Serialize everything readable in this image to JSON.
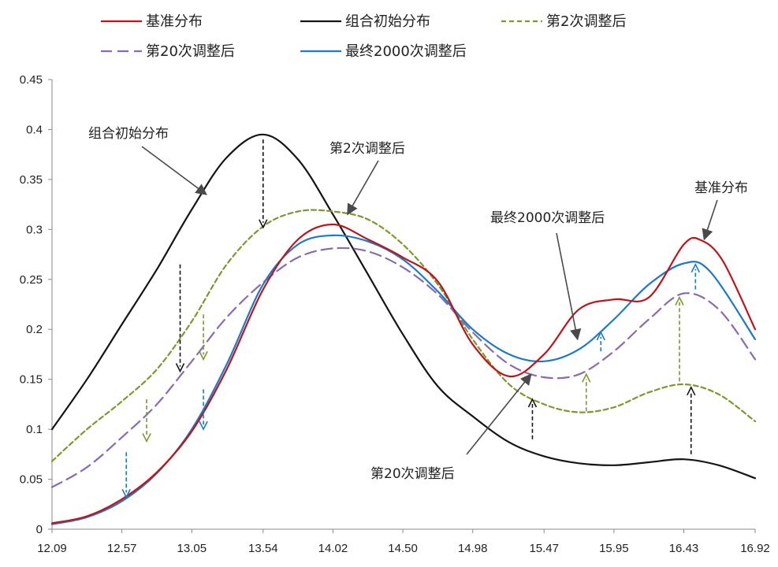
{
  "chart_data": {
    "type": "line",
    "x_ticks": [
      "12.09",
      "12.57",
      "13.05",
      "13.54",
      "14.02",
      "14.50",
      "14.98",
      "15.47",
      "15.95",
      "16.43",
      "16.92"
    ],
    "y_ticks": [
      "0",
      "0.05",
      "0.1",
      "0.15",
      "0.2",
      "0.25",
      "0.3",
      "0.35",
      "0.4",
      "0.45"
    ],
    "xlim": [
      12.09,
      16.92
    ],
    "ylim": [
      0,
      0.45
    ],
    "grid": false,
    "legend_position": "top",
    "series": [
      {
        "name": "基准分布",
        "color": "#c0141c",
        "dash": "solid",
        "points": [
          [
            12.09,
            0.006
          ],
          [
            12.33,
            0.013
          ],
          [
            12.57,
            0.03
          ],
          [
            12.81,
            0.057
          ],
          [
            13.05,
            0.098
          ],
          [
            13.29,
            0.16
          ],
          [
            13.54,
            0.24
          ],
          [
            13.78,
            0.29
          ],
          [
            14.02,
            0.305
          ],
          [
            14.26,
            0.29
          ],
          [
            14.5,
            0.272
          ],
          [
            14.74,
            0.248
          ],
          [
            14.98,
            0.185
          ],
          [
            15.23,
            0.153
          ],
          [
            15.47,
            0.175
          ],
          [
            15.71,
            0.22
          ],
          [
            15.95,
            0.23
          ],
          [
            16.19,
            0.232
          ],
          [
            16.43,
            0.285
          ],
          [
            16.55,
            0.289
          ],
          [
            16.7,
            0.268
          ],
          [
            16.92,
            0.2
          ]
        ]
      },
      {
        "name": "组合初始分布",
        "color": "#151515",
        "dash": "solid",
        "points": [
          [
            12.09,
            0.1
          ],
          [
            12.33,
            0.15
          ],
          [
            12.57,
            0.205
          ],
          [
            12.81,
            0.26
          ],
          [
            13.05,
            0.32
          ],
          [
            13.29,
            0.372
          ],
          [
            13.54,
            0.395
          ],
          [
            13.78,
            0.37
          ],
          [
            14.02,
            0.315
          ],
          [
            14.26,
            0.255
          ],
          [
            14.5,
            0.195
          ],
          [
            14.74,
            0.143
          ],
          [
            14.98,
            0.113
          ],
          [
            15.23,
            0.087
          ],
          [
            15.47,
            0.073
          ],
          [
            15.71,
            0.066
          ],
          [
            15.95,
            0.064
          ],
          [
            16.19,
            0.067
          ],
          [
            16.43,
            0.07
          ],
          [
            16.67,
            0.064
          ],
          [
            16.92,
            0.051
          ]
        ]
      },
      {
        "name": "第2次调整后",
        "color": "#7a9a2e",
        "dash": "dashed",
        "points": [
          [
            12.09,
            0.068
          ],
          [
            12.33,
            0.1
          ],
          [
            12.57,
            0.128
          ],
          [
            12.81,
            0.16
          ],
          [
            13.05,
            0.208
          ],
          [
            13.29,
            0.265
          ],
          [
            13.54,
            0.303
          ],
          [
            13.78,
            0.318
          ],
          [
            14.02,
            0.318
          ],
          [
            14.26,
            0.31
          ],
          [
            14.5,
            0.285
          ],
          [
            14.74,
            0.245
          ],
          [
            14.98,
            0.19
          ],
          [
            15.23,
            0.145
          ],
          [
            15.47,
            0.125
          ],
          [
            15.71,
            0.117
          ],
          [
            15.95,
            0.122
          ],
          [
            16.19,
            0.137
          ],
          [
            16.43,
            0.145
          ],
          [
            16.67,
            0.135
          ],
          [
            16.92,
            0.108
          ]
        ]
      },
      {
        "name": "第20次调整后",
        "color": "#8a6bb0",
        "dash": "longdash",
        "points": [
          [
            12.09,
            0.042
          ],
          [
            12.33,
            0.062
          ],
          [
            12.57,
            0.092
          ],
          [
            12.81,
            0.125
          ],
          [
            13.05,
            0.168
          ],
          [
            13.29,
            0.212
          ],
          [
            13.54,
            0.247
          ],
          [
            13.78,
            0.272
          ],
          [
            14.02,
            0.281
          ],
          [
            14.26,
            0.278
          ],
          [
            14.5,
            0.262
          ],
          [
            14.74,
            0.235
          ],
          [
            14.98,
            0.197
          ],
          [
            15.23,
            0.165
          ],
          [
            15.47,
            0.152
          ],
          [
            15.71,
            0.155
          ],
          [
            15.95,
            0.178
          ],
          [
            16.19,
            0.21
          ],
          [
            16.43,
            0.236
          ],
          [
            16.67,
            0.22
          ],
          [
            16.92,
            0.17
          ]
        ]
      },
      {
        "name": "最终2000次调整后",
        "color": "#1c7ac7",
        "dash": "solid",
        "points": [
          [
            12.09,
            0.005
          ],
          [
            12.33,
            0.012
          ],
          [
            12.57,
            0.028
          ],
          [
            12.81,
            0.056
          ],
          [
            13.05,
            0.1
          ],
          [
            13.29,
            0.165
          ],
          [
            13.54,
            0.245
          ],
          [
            13.78,
            0.285
          ],
          [
            14.02,
            0.294
          ],
          [
            14.26,
            0.288
          ],
          [
            14.5,
            0.27
          ],
          [
            14.74,
            0.238
          ],
          [
            14.98,
            0.2
          ],
          [
            15.23,
            0.175
          ],
          [
            15.47,
            0.168
          ],
          [
            15.71,
            0.18
          ],
          [
            15.95,
            0.21
          ],
          [
            16.19,
            0.245
          ],
          [
            16.43,
            0.266
          ],
          [
            16.61,
            0.258
          ],
          [
            16.92,
            0.19
          ]
        ]
      }
    ],
    "annotations": [
      {
        "text": "组合初始分布",
        "target": [
          13.15,
          0.335
        ]
      },
      {
        "text": "第2次调整后",
        "target": [
          14.12,
          0.315
        ]
      },
      {
        "text": "最终2000次调整后",
        "target": [
          15.7,
          0.19
        ]
      },
      {
        "text": "基准分布",
        "target": [
          16.57,
          0.29
        ]
      },
      {
        "text": "第20次调整后",
        "target": [
          15.38,
          0.155
        ]
      }
    ],
    "adjust_arrows": [
      {
        "color": "#151515",
        "x": 13.54,
        "from": 0.39,
        "to": 0.302
      },
      {
        "color": "#151515",
        "x": 12.97,
        "from": 0.265,
        "to": 0.158
      },
      {
        "color": "#151515",
        "x": 15.39,
        "from": 0.09,
        "to": 0.13
      },
      {
        "color": "#151515",
        "x": 16.48,
        "from": 0.075,
        "to": 0.142
      },
      {
        "color": "#7a9a2e",
        "x": 12.74,
        "from": 0.13,
        "to": 0.088
      },
      {
        "color": "#7a9a2e",
        "x": 13.13,
        "from": 0.215,
        "to": 0.17
      },
      {
        "color": "#7a9a2e",
        "x": 15.76,
        "from": 0.118,
        "to": 0.155
      },
      {
        "color": "#7a9a2e",
        "x": 16.4,
        "from": 0.148,
        "to": 0.232
      },
      {
        "color": "#1c7ac7",
        "x": 12.6,
        "from": 0.077,
        "to": 0.032
      },
      {
        "color": "#1c7ac7",
        "x": 13.13,
        "from": 0.14,
        "to": 0.1
      },
      {
        "color": "#1c7ac7",
        "x": 15.86,
        "from": 0.178,
        "to": 0.197
      },
      {
        "color": "#1c7ac7",
        "x": 16.51,
        "from": 0.24,
        "to": 0.265
      }
    ]
  }
}
